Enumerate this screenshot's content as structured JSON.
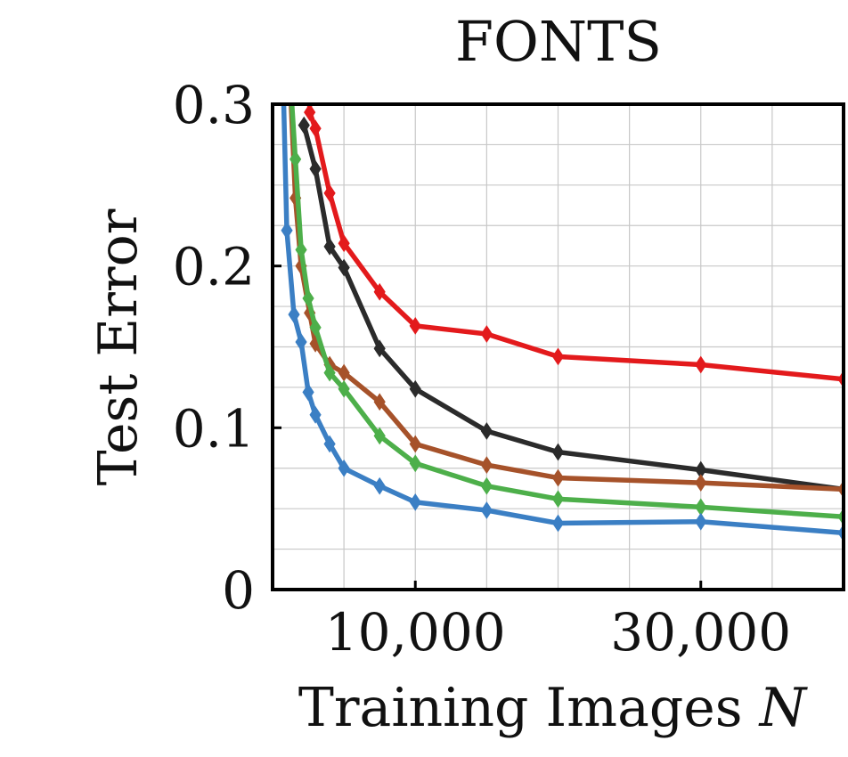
{
  "chart_data": {
    "type": "line",
    "title": "FONTS",
    "xlabel": "Training Images",
    "xlabel_symbol": "N",
    "ylabel": "Test Error",
    "xlim": [
      0,
      40000
    ],
    "ylim": [
      0,
      0.3
    ],
    "xticks": [
      {
        "value": 10000,
        "label": "10,000"
      },
      {
        "value": 30000,
        "label": "30,000"
      }
    ],
    "yticks": [
      {
        "value": 0,
        "label": "0"
      },
      {
        "value": 0.1,
        "label": "0.1"
      },
      {
        "value": 0.2,
        "label": "0.2"
      },
      {
        "value": 0.3,
        "label": "0.3"
      }
    ],
    "grid": true,
    "marker": "diamond",
    "series": [
      {
        "color": "#e31a1c",
        "points": [
          [
            2500,
            0.35
          ],
          [
            2600,
            0.295
          ],
          [
            3000,
            0.285
          ],
          [
            4000,
            0.245
          ],
          [
            5000,
            0.214
          ],
          [
            7500,
            0.184
          ],
          [
            10000,
            0.163
          ],
          [
            15000,
            0.158
          ],
          [
            20000,
            0.144
          ],
          [
            30000,
            0.139
          ],
          [
            40000,
            0.13
          ]
        ]
      },
      {
        "color": "#2b2b2b",
        "points": [
          [
            2200,
            0.287
          ],
          [
            3000,
            0.26
          ],
          [
            4000,
            0.212
          ],
          [
            5000,
            0.199
          ],
          [
            7500,
            0.149
          ],
          [
            10000,
            0.124
          ],
          [
            15000,
            0.098
          ],
          [
            20000,
            0.085
          ],
          [
            30000,
            0.074
          ],
          [
            40000,
            0.062
          ]
        ]
      },
      {
        "color": "#a6522a",
        "points": [
          [
            1200,
            0.32
          ],
          [
            1600,
            0.242
          ],
          [
            2000,
            0.2
          ],
          [
            2600,
            0.171
          ],
          [
            3000,
            0.152
          ],
          [
            4000,
            0.139
          ],
          [
            5000,
            0.134
          ],
          [
            7500,
            0.116
          ],
          [
            10000,
            0.09
          ],
          [
            15000,
            0.077
          ],
          [
            20000,
            0.069
          ],
          [
            30000,
            0.066
          ],
          [
            40000,
            0.062
          ]
        ]
      },
      {
        "color": "#4daf4a",
        "points": [
          [
            1000,
            0.35
          ],
          [
            1600,
            0.266
          ],
          [
            2000,
            0.21
          ],
          [
            2500,
            0.18
          ],
          [
            3000,
            0.162
          ],
          [
            4000,
            0.134
          ],
          [
            5000,
            0.124
          ],
          [
            7500,
            0.095
          ],
          [
            10000,
            0.078
          ],
          [
            15000,
            0.064
          ],
          [
            20000,
            0.056
          ],
          [
            30000,
            0.051
          ],
          [
            40000,
            0.045
          ]
        ]
      },
      {
        "color": "#3b7fc4",
        "points": [
          [
            700,
            0.33
          ],
          [
            1000,
            0.222
          ],
          [
            1500,
            0.17
          ],
          [
            2000,
            0.153
          ],
          [
            2500,
            0.122
          ],
          [
            3000,
            0.108
          ],
          [
            4000,
            0.09
          ],
          [
            5000,
            0.075
          ],
          [
            7500,
            0.064
          ],
          [
            10000,
            0.054
          ],
          [
            15000,
            0.049
          ],
          [
            20000,
            0.041
          ],
          [
            30000,
            0.042
          ],
          [
            40000,
            0.035
          ]
        ]
      }
    ]
  }
}
